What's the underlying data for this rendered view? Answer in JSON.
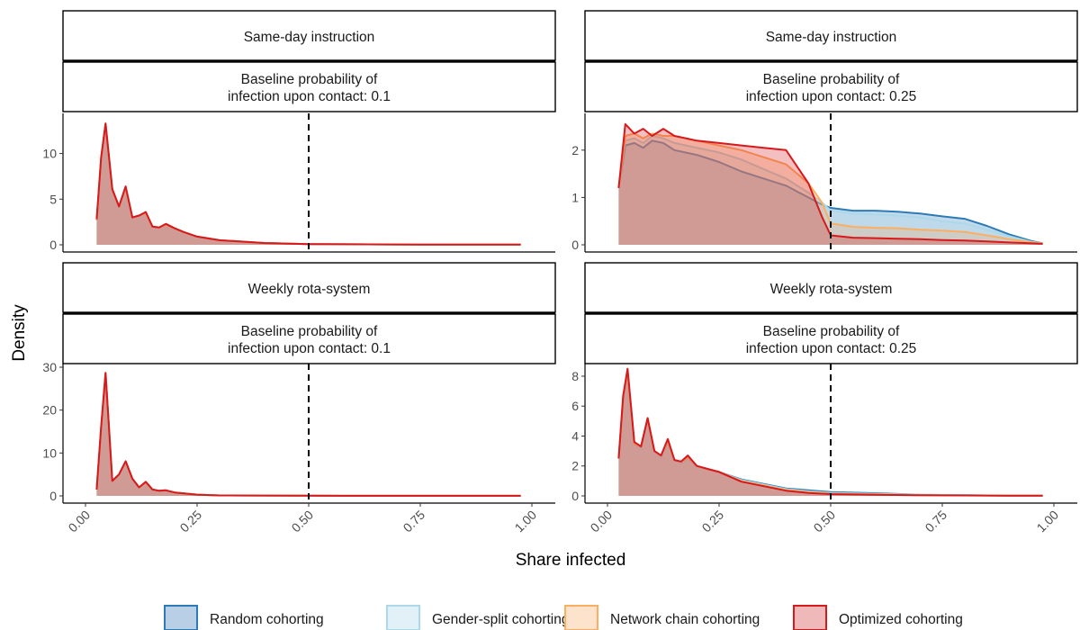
{
  "x_axis_title": "Share infected",
  "y_axis_title": "Density",
  "x_ticks": [
    "0.00",
    "0.25",
    "0.50",
    "0.75",
    "1.00"
  ],
  "legend": {
    "items": [
      {
        "label": "Random cohorting",
        "stroke": "#2c7bb6",
        "fill": "#b9cfe6"
      },
      {
        "label": "Gender-split cohorting",
        "stroke": "#abd9e9",
        "fill": "#e2f1f8"
      },
      {
        "label": "Network chain cohorting",
        "stroke": "#fdae61",
        "fill": "#fde3cc"
      },
      {
        "label": "Optimized cohorting",
        "stroke": "#d7191c",
        "fill": "#f0b9b9"
      }
    ]
  },
  "chart_data": {
    "type": "area",
    "xlabel": "Share infected",
    "ylabel": "Density",
    "xlim": [
      0,
      1
    ],
    "reference_line_x": 0.5,
    "panels": [
      {
        "strip_top": "Same-day instruction",
        "strip_bottom": "Baseline probability of\ninfection upon contact: 0.1",
        "ylim": [
          0,
          14
        ],
        "y_ticks": [
          0,
          5,
          10
        ],
        "series": [
          {
            "name": "Random cohorting",
            "x": [
              0.025,
              0.035,
              0.045,
              0.06,
              0.075,
              0.09,
              0.105,
              0.12,
              0.135,
              0.15,
              0.165,
              0.18,
              0.2,
              0.22,
              0.25,
              0.3,
              0.4,
              0.5,
              0.75,
              0.975
            ],
            "y": [
              2.7,
              9.5,
              13.2,
              6.0,
              4.2,
              6.3,
              3.0,
              3.2,
              3.5,
              2.0,
              1.9,
              2.2,
              1.8,
              1.4,
              0.9,
              0.5,
              0.2,
              0.08,
              0.03,
              0.02
            ]
          },
          {
            "name": "Gender-split cohorting",
            "x": [
              0.025,
              0.035,
              0.045,
              0.06,
              0.075,
              0.09,
              0.105,
              0.12,
              0.135,
              0.15,
              0.165,
              0.18,
              0.2,
              0.22,
              0.25,
              0.3,
              0.4,
              0.5,
              0.75,
              0.975
            ],
            "y": [
              2.7,
              9.5,
              13.2,
              6.0,
              4.2,
              6.3,
              3.0,
              3.2,
              3.5,
              2.0,
              1.9,
              2.2,
              1.8,
              1.4,
              0.9,
              0.5,
              0.2,
              0.08,
              0.03,
              0.02
            ]
          },
          {
            "name": "Network chain cohorting",
            "x": [
              0.025,
              0.035,
              0.045,
              0.06,
              0.075,
              0.09,
              0.105,
              0.12,
              0.135,
              0.15,
              0.165,
              0.18,
              0.2,
              0.22,
              0.25,
              0.3,
              0.4,
              0.5,
              0.75,
              0.975
            ],
            "y": [
              2.7,
              9.5,
              13.2,
              6.0,
              4.2,
              6.3,
              3.0,
              3.2,
              3.5,
              2.0,
              1.9,
              2.2,
              1.8,
              1.4,
              0.9,
              0.5,
              0.2,
              0.08,
              0.03,
              0.02
            ]
          },
          {
            "name": "Optimized cohorting",
            "x": [
              0.025,
              0.035,
              0.045,
              0.06,
              0.075,
              0.09,
              0.105,
              0.12,
              0.135,
              0.15,
              0.165,
              0.18,
              0.2,
              0.22,
              0.25,
              0.3,
              0.4,
              0.5,
              0.75,
              0.975
            ],
            "y": [
              2.8,
              9.6,
              13.3,
              6.1,
              4.2,
              6.4,
              3.0,
              3.2,
              3.6,
              2.0,
              1.9,
              2.3,
              1.8,
              1.4,
              0.9,
              0.5,
              0.2,
              0.08,
              0.03,
              0.02
            ]
          }
        ]
      },
      {
        "strip_top": "Same-day instruction",
        "strip_bottom": "Baseline probability of\ninfection upon contact: 0.25",
        "ylim": [
          0,
          2.7
        ],
        "y_ticks": [
          0,
          1,
          2
        ],
        "series": [
          {
            "name": "Random cohorting",
            "x": [
              0.025,
              0.04,
              0.06,
              0.08,
              0.1,
              0.125,
              0.15,
              0.2,
              0.25,
              0.3,
              0.35,
              0.4,
              0.45,
              0.48,
              0.5,
              0.55,
              0.6,
              0.65,
              0.7,
              0.75,
              0.8,
              0.85,
              0.9,
              0.95,
              0.975
            ],
            "y": [
              1.2,
              2.1,
              2.15,
              2.05,
              2.2,
              2.15,
              2.0,
              1.9,
              1.75,
              1.55,
              1.4,
              1.25,
              1.0,
              0.85,
              0.78,
              0.72,
              0.72,
              0.7,
              0.66,
              0.6,
              0.55,
              0.4,
              0.22,
              0.08,
              0.03
            ]
          },
          {
            "name": "Gender-split cohorting",
            "x": [
              0.025,
              0.04,
              0.06,
              0.08,
              0.1,
              0.125,
              0.15,
              0.2,
              0.25,
              0.3,
              0.35,
              0.4,
              0.45,
              0.48,
              0.5,
              0.55,
              0.6,
              0.65,
              0.7,
              0.75,
              0.8,
              0.85,
              0.9,
              0.95,
              0.975
            ],
            "y": [
              1.2,
              2.2,
              2.25,
              2.15,
              2.3,
              2.25,
              2.15,
              2.05,
              1.95,
              1.8,
              1.6,
              1.4,
              1.1,
              0.9,
              0.72,
              0.66,
              0.64,
              0.62,
              0.58,
              0.5,
              0.45,
              0.32,
              0.18,
              0.06,
              0.03
            ]
          },
          {
            "name": "Network chain cohorting",
            "x": [
              0.025,
              0.04,
              0.06,
              0.08,
              0.1,
              0.125,
              0.15,
              0.2,
              0.25,
              0.3,
              0.35,
              0.4,
              0.45,
              0.48,
              0.5,
              0.55,
              0.6,
              0.65,
              0.7,
              0.75,
              0.8,
              0.85,
              0.9,
              0.95,
              0.975
            ],
            "y": [
              1.2,
              2.3,
              2.35,
              2.25,
              2.35,
              2.3,
              2.3,
              2.2,
              2.1,
              2.0,
              1.85,
              1.7,
              1.3,
              0.9,
              0.45,
              0.38,
              0.36,
              0.35,
              0.32,
              0.3,
              0.27,
              0.2,
              0.12,
              0.05,
              0.03
            ]
          },
          {
            "name": "Optimized cohorting",
            "x": [
              0.025,
              0.04,
              0.06,
              0.08,
              0.1,
              0.125,
              0.15,
              0.2,
              0.25,
              0.3,
              0.35,
              0.4,
              0.45,
              0.48,
              0.5,
              0.55,
              0.6,
              0.65,
              0.7,
              0.75,
              0.8,
              0.85,
              0.9,
              0.95,
              0.975
            ],
            "y": [
              1.2,
              2.55,
              2.35,
              2.45,
              2.3,
              2.45,
              2.3,
              2.2,
              2.15,
              2.1,
              2.05,
              2.0,
              1.3,
              0.6,
              0.2,
              0.15,
              0.14,
              0.13,
              0.12,
              0.1,
              0.09,
              0.07,
              0.05,
              0.03,
              0.02
            ]
          }
        ]
      },
      {
        "strip_top": "Weekly rota-system",
        "strip_bottom": "Baseline probability of\ninfection upon contact: 0.1",
        "ylim": [
          0,
          30
        ],
        "y_ticks": [
          0,
          10,
          20,
          30
        ],
        "series": [
          {
            "name": "Random cohorting",
            "x": [
              0.025,
              0.035,
              0.045,
              0.06,
              0.075,
              0.09,
              0.105,
              0.12,
              0.135,
              0.15,
              0.165,
              0.18,
              0.2,
              0.25,
              0.3,
              0.5,
              0.975
            ],
            "y": [
              1.5,
              16.0,
              28.5,
              3.5,
              5.0,
              8.0,
              4.0,
              2.0,
              3.2,
              1.5,
              1.2,
              1.3,
              0.8,
              0.3,
              0.1,
              0.05,
              0.02
            ]
          },
          {
            "name": "Gender-split cohorting",
            "x": [
              0.025,
              0.035,
              0.045,
              0.06,
              0.075,
              0.09,
              0.105,
              0.12,
              0.135,
              0.15,
              0.165,
              0.18,
              0.2,
              0.25,
              0.3,
              0.5,
              0.975
            ],
            "y": [
              1.5,
              16.0,
              28.5,
              3.5,
              5.0,
              8.0,
              4.0,
              2.0,
              3.2,
              1.5,
              1.2,
              1.3,
              0.8,
              0.3,
              0.1,
              0.05,
              0.02
            ]
          },
          {
            "name": "Network chain cohorting",
            "x": [
              0.025,
              0.035,
              0.045,
              0.06,
              0.075,
              0.09,
              0.105,
              0.12,
              0.135,
              0.15,
              0.165,
              0.18,
              0.2,
              0.25,
              0.3,
              0.5,
              0.975
            ],
            "y": [
              1.5,
              16.0,
              28.5,
              3.5,
              5.0,
              8.0,
              4.0,
              2.0,
              3.2,
              1.5,
              1.2,
              1.3,
              0.8,
              0.3,
              0.1,
              0.05,
              0.02
            ]
          },
          {
            "name": "Optimized cohorting",
            "x": [
              0.025,
              0.035,
              0.045,
              0.06,
              0.075,
              0.09,
              0.105,
              0.12,
              0.135,
              0.15,
              0.165,
              0.18,
              0.2,
              0.25,
              0.3,
              0.5,
              0.975
            ],
            "y": [
              1.5,
              16.2,
              28.7,
              3.5,
              5.0,
              8.1,
              4.0,
              2.0,
              3.3,
              1.5,
              1.2,
              1.3,
              0.8,
              0.3,
              0.1,
              0.05,
              0.02
            ]
          }
        ]
      },
      {
        "strip_top": "Weekly rota-system",
        "strip_bottom": "Baseline probability of\ninfection upon contact: 0.25",
        "ylim": [
          0,
          8.6
        ],
        "y_ticks": [
          0,
          2,
          4,
          6,
          8
        ],
        "series": [
          {
            "name": "Random cohorting",
            "x": [
              0.025,
              0.035,
              0.045,
              0.06,
              0.075,
              0.09,
              0.105,
              0.12,
              0.135,
              0.15,
              0.165,
              0.18,
              0.2,
              0.225,
              0.25,
              0.3,
              0.35,
              0.4,
              0.45,
              0.5,
              0.6,
              0.7,
              0.8,
              0.9,
              0.975
            ],
            "y": [
              2.5,
              6.5,
              8.3,
              3.5,
              3.2,
              5.1,
              3.0,
              2.6,
              3.6,
              2.4,
              2.2,
              2.5,
              2.0,
              1.8,
              1.6,
              1.1,
              0.8,
              0.5,
              0.38,
              0.25,
              0.18,
              0.08,
              0.04,
              0.02,
              0.02
            ]
          },
          {
            "name": "Gender-split cohorting",
            "x": [
              0.025,
              0.035,
              0.045,
              0.06,
              0.075,
              0.09,
              0.105,
              0.12,
              0.135,
              0.15,
              0.165,
              0.18,
              0.2,
              0.225,
              0.25,
              0.3,
              0.35,
              0.4,
              0.45,
              0.5,
              0.6,
              0.7,
              0.8,
              0.9,
              0.975
            ],
            "y": [
              2.5,
              6.5,
              8.3,
              3.5,
              3.2,
              5.1,
              3.0,
              2.6,
              3.6,
              2.4,
              2.2,
              2.5,
              2.0,
              1.8,
              1.6,
              1.05,
              0.75,
              0.45,
              0.3,
              0.2,
              0.14,
              0.07,
              0.04,
              0.02,
              0.02
            ]
          },
          {
            "name": "Network chain cohorting",
            "x": [
              0.025,
              0.035,
              0.045,
              0.06,
              0.075,
              0.09,
              0.105,
              0.12,
              0.135,
              0.15,
              0.165,
              0.18,
              0.2,
              0.225,
              0.25,
              0.3,
              0.35,
              0.4,
              0.45,
              0.5,
              0.6,
              0.7,
              0.8,
              0.9,
              0.975
            ],
            "y": [
              2.5,
              6.6,
              8.4,
              3.5,
              3.3,
              5.2,
              3.0,
              2.7,
              3.7,
              2.4,
              2.3,
              2.6,
              2.0,
              1.8,
              1.6,
              1.0,
              0.7,
              0.4,
              0.25,
              0.15,
              0.1,
              0.05,
              0.03,
              0.02,
              0.02
            ]
          },
          {
            "name": "Optimized cohorting",
            "x": [
              0.025,
              0.035,
              0.045,
              0.06,
              0.075,
              0.09,
              0.105,
              0.12,
              0.135,
              0.15,
              0.165,
              0.18,
              0.2,
              0.225,
              0.25,
              0.3,
              0.35,
              0.4,
              0.45,
              0.5,
              0.6,
              0.7,
              0.8,
              0.9,
              0.975
            ],
            "y": [
              2.5,
              6.7,
              8.5,
              3.6,
              3.3,
              5.2,
              3.0,
              2.7,
              3.8,
              2.4,
              2.3,
              2.7,
              2.0,
              1.8,
              1.6,
              0.95,
              0.65,
              0.35,
              0.2,
              0.12,
              0.08,
              0.04,
              0.03,
              0.02,
              0.02
            ]
          }
        ]
      }
    ]
  }
}
